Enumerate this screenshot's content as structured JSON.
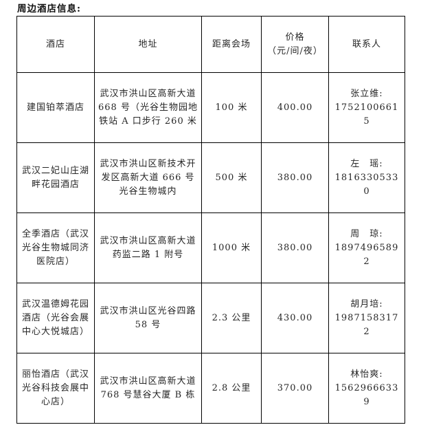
{
  "title": "周边酒店信息:",
  "table": {
    "headers": [
      "酒店",
      "地址",
      "距离会场",
      "价格\n（元/间/夜）",
      "联系人"
    ],
    "rows": [
      {
        "hotel": "建国铂萃酒店",
        "address": "武汉市洪山区高新大道 668 号（光谷生物园地铁站 A 口步行 260 米",
        "distance": "100 米",
        "price": "400.00",
        "contact": "张立维:\n17521006615"
      },
      {
        "hotel": "武汉二妃山庄湖畔花园酒店",
        "address": "武汉市洪山区新技术开发区高新大道 666 号光谷生物城内",
        "distance": "500 米",
        "price": "380.00",
        "contact": "左　瑶:\n18163305330"
      },
      {
        "hotel": "全季酒店（武汉光谷生物城同济医院店）",
        "address": "武汉市洪山区高新大道药监二路 1 附号",
        "distance": "1000 米",
        "price": "380.00",
        "contact": "周　琼:\n18974965892"
      },
      {
        "hotel": "武汉温德姆花园酒店（光谷会展中心大悦城店）",
        "address": "武汉市洪山区光谷四路 58 号",
        "distance": "2.3 公里",
        "price": "430.00",
        "contact": "胡月培:\n19871583172"
      },
      {
        "hotel": "丽怡酒店（武汉光谷科技会展中心店）",
        "address": "武汉市洪山区高新大道 768 号慧谷大厦 B 栋",
        "distance": "2.8 公里",
        "price": "370.00",
        "contact": "林怡爽:\n15629666339"
      }
    ]
  }
}
